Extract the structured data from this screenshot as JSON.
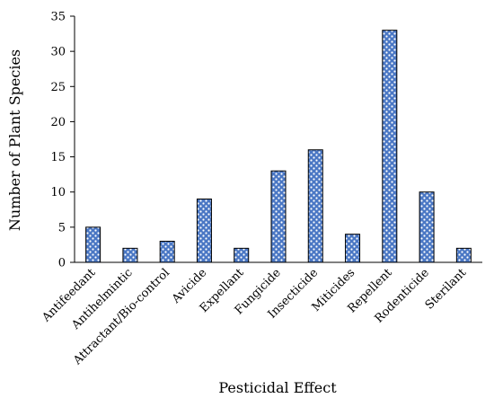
{
  "chart_data": {
    "type": "bar",
    "categories": [
      "Antifeedant",
      "Antihelmintic",
      "Attractant/Bio-control",
      "Avicide",
      "Expellant",
      "Fungicide",
      "Insecticide",
      "Miticides",
      "Repellent",
      "Rodenticide",
      "Sterilant"
    ],
    "values": [
      5,
      2,
      3,
      9,
      2,
      13,
      16,
      4,
      33,
      10,
      2
    ],
    "title": "",
    "xlabel": "Pesticidal Effect",
    "ylabel": "Number of Plant Species",
    "ylim": [
      0,
      35
    ],
    "yticks": [
      0,
      5,
      10,
      15,
      20,
      25,
      30,
      35
    ],
    "grid": false,
    "legend": "none",
    "bar_pattern": "blue-and-white patterned fill",
    "colors": {
      "bar_fill": "#4a77c4",
      "bar_pattern_light": "#ffffff",
      "axis": "#000000"
    }
  }
}
